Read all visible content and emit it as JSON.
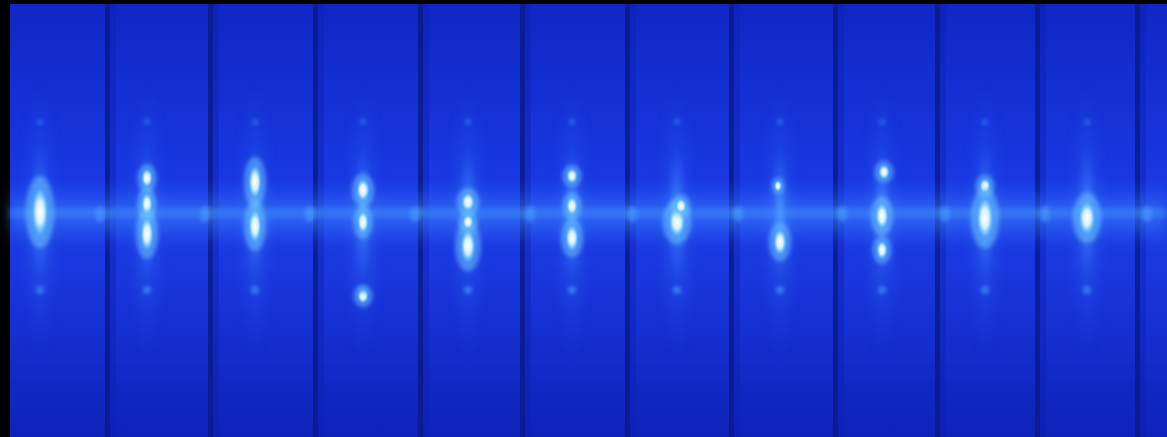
{
  "image": {
    "description_free": true,
    "colors": {
      "frame": "#000000",
      "field": "#1530d8",
      "field_deep": "#0c1fb0",
      "separator": "#0a1a8a",
      "glow": "#2f7bff",
      "core": "#ffffff",
      "halo": "#6fc8ff"
    },
    "strip_count": 11,
    "spot_count": 11
  }
}
